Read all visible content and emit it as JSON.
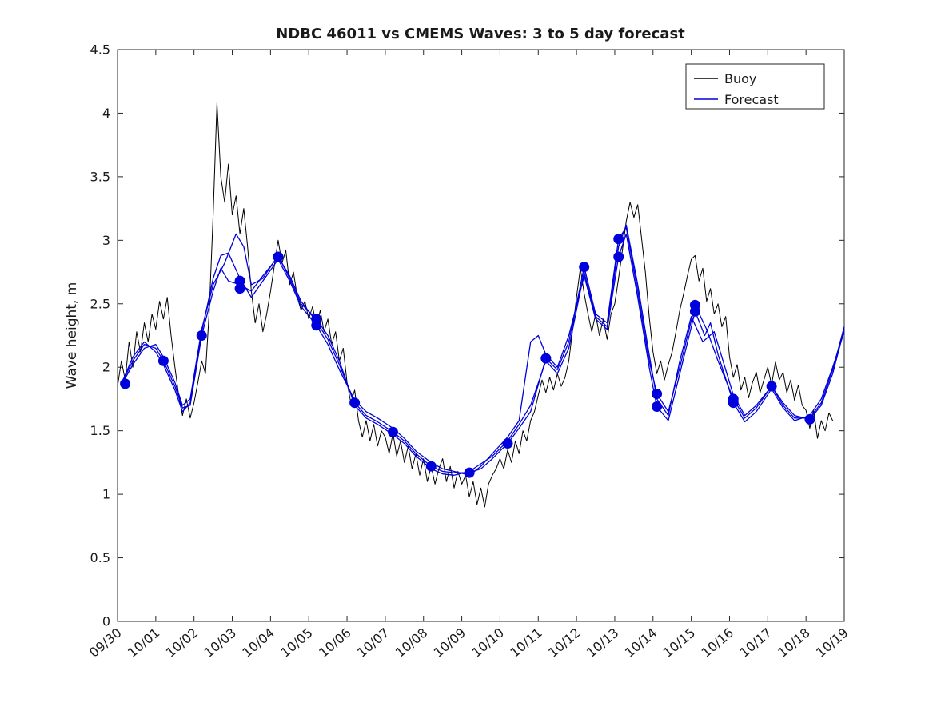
{
  "title": "NDBC 46011 vs CMEMS Waves: 3 to 5 day forecast",
  "style": {
    "axis_color": "#262626",
    "buoy_color": "#000000",
    "forecast_color": "#0000dd",
    "background": "#ffffff"
  },
  "chart_data": {
    "type": "line",
    "title": "NDBC 46011 vs CMEMS Waves: 3 to 5 day forecast",
    "xlabel": "",
    "ylabel": "Wave height, m",
    "grid": false,
    "legend_position": "northeast",
    "legend": [
      "Buoy",
      "Forecast"
    ],
    "xlim_days": [
      0,
      19
    ],
    "ylim": [
      0,
      4.5
    ],
    "x_tick_labels": [
      "09/30",
      "10/01",
      "10/02",
      "10/03",
      "10/04",
      "10/05",
      "10/06",
      "10/07",
      "10/08",
      "10/09",
      "10/10",
      "10/11",
      "10/12",
      "10/13",
      "10/14",
      "10/15",
      "10/16",
      "10/17",
      "10/18",
      "10/19"
    ],
    "y_ticks": [
      0,
      0.5,
      1,
      1.5,
      2,
      2.5,
      3,
      3.5,
      4,
      4.5
    ],
    "y_tick_labels": [
      "0",
      "0.5",
      "1",
      "1.5",
      "2",
      "2.5",
      "3",
      "3.5",
      "4",
      "4.5"
    ],
    "series": [
      {
        "name": "Buoy",
        "type": "line",
        "color": "#000000",
        "width": 1,
        "x0": 0,
        "dt": 0.1,
        "y": [
          1.85,
          2.05,
          1.9,
          2.2,
          2.0,
          2.28,
          2.12,
          2.35,
          2.2,
          2.42,
          2.3,
          2.52,
          2.38,
          2.55,
          2.25,
          2.0,
          1.78,
          1.62,
          1.75,
          1.6,
          1.72,
          1.88,
          2.05,
          1.95,
          2.45,
          3.2,
          4.08,
          3.5,
          3.3,
          3.6,
          3.2,
          3.35,
          3.05,
          3.25,
          2.95,
          2.6,
          2.35,
          2.5,
          2.28,
          2.42,
          2.6,
          2.8,
          3.0,
          2.82,
          2.92,
          2.65,
          2.75,
          2.55,
          2.45,
          2.52,
          2.38,
          2.48,
          2.32,
          2.45,
          2.28,
          2.38,
          2.18,
          2.28,
          2.05,
          2.15,
          1.88,
          1.72,
          1.82,
          1.58,
          1.45,
          1.58,
          1.42,
          1.55,
          1.38,
          1.5,
          1.45,
          1.32,
          1.48,
          1.3,
          1.42,
          1.25,
          1.38,
          1.2,
          1.32,
          1.15,
          1.28,
          1.1,
          1.22,
          1.08,
          1.2,
          1.28,
          1.1,
          1.22,
          1.05,
          1.18,
          1.08,
          1.15,
          0.98,
          1.1,
          0.92,
          1.05,
          0.9,
          1.08,
          1.15,
          1.2,
          1.28,
          1.2,
          1.35,
          1.25,
          1.42,
          1.32,
          1.5,
          1.42,
          1.58,
          1.65,
          1.78,
          1.9,
          1.8,
          1.92,
          1.82,
          1.95,
          1.85,
          1.92,
          2.05,
          2.3,
          2.55,
          2.78,
          2.58,
          2.42,
          2.28,
          2.42,
          2.25,
          2.38,
          2.22,
          2.42,
          2.5,
          2.7,
          2.92,
          3.15,
          3.3,
          3.18,
          3.28,
          3.02,
          2.75,
          2.4,
          2.12,
          1.95,
          2.05,
          1.9,
          2.02,
          2.12,
          2.28,
          2.45,
          2.58,
          2.72,
          2.85,
          2.88,
          2.68,
          2.78,
          2.52,
          2.62,
          2.42,
          2.5,
          2.32,
          2.4,
          2.08,
          1.92,
          2.02,
          1.82,
          1.92,
          1.76,
          1.88,
          1.96,
          1.8,
          1.9,
          2.0,
          1.86,
          2.04,
          1.9,
          1.96,
          1.8,
          1.9,
          1.74,
          1.86,
          1.7,
          1.66,
          1.52,
          1.66,
          1.44,
          1.58,
          1.5,
          1.64,
          1.58
        ]
      },
      {
        "name": "Forecast",
        "type": "line",
        "color": "#0000dd",
        "width": 1.3,
        "points": [
          [
            0.1,
            1.87
          ],
          [
            0.4,
            2.05
          ],
          [
            0.7,
            2.18
          ],
          [
            1.0,
            2.15
          ],
          [
            1.2,
            2.05
          ],
          [
            1.5,
            1.85
          ],
          [
            1.7,
            1.68
          ],
          [
            1.9,
            1.7
          ],
          [
            2.2,
            2.25
          ],
          [
            2.5,
            2.6
          ],
          [
            2.7,
            2.78
          ],
          [
            2.9,
            2.68
          ],
          [
            3.2,
            2.65
          ],
          [
            3.5,
            2.6
          ],
          [
            3.8,
            2.72
          ],
          [
            4.2,
            2.87
          ],
          [
            4.5,
            2.72
          ],
          [
            4.8,
            2.52
          ],
          [
            5.2,
            2.36
          ],
          [
            5.5,
            2.22
          ],
          [
            5.8,
            2.02
          ],
          [
            6.2,
            1.72
          ],
          [
            6.5,
            1.62
          ],
          [
            6.8,
            1.57
          ],
          [
            7.2,
            1.49
          ],
          [
            7.5,
            1.42
          ],
          [
            7.8,
            1.32
          ],
          [
            8.2,
            1.22
          ],
          [
            8.5,
            1.18
          ],
          [
            8.8,
            1.17
          ],
          [
            9.2,
            1.17
          ],
          [
            9.5,
            1.2
          ],
          [
            9.8,
            1.28
          ],
          [
            10.2,
            1.4
          ],
          [
            10.5,
            1.52
          ],
          [
            10.8,
            1.65
          ],
          [
            11.2,
            2.07
          ],
          [
            11.5,
            1.98
          ],
          [
            11.8,
            2.2
          ],
          [
            12.2,
            2.79
          ],
          [
            12.5,
            2.42
          ],
          [
            12.8,
            2.35
          ],
          [
            13.1,
            3.01
          ],
          [
            13.3,
            3.1
          ],
          [
            13.6,
            2.6
          ],
          [
            13.9,
            2.05
          ],
          [
            14.1,
            1.79
          ],
          [
            14.4,
            1.65
          ],
          [
            14.7,
            2.0
          ],
          [
            15.1,
            2.49
          ],
          [
            15.4,
            2.3
          ],
          [
            15.7,
            2.05
          ],
          [
            16.1,
            1.75
          ],
          [
            16.4,
            1.6
          ],
          [
            16.7,
            1.68
          ],
          [
            17.1,
            1.85
          ],
          [
            17.4,
            1.72
          ],
          [
            17.7,
            1.62
          ],
          [
            18.1,
            1.59
          ],
          [
            18.4,
            1.7
          ],
          [
            18.7,
            1.95
          ],
          [
            19.0,
            2.3
          ]
        ]
      },
      {
        "name": "Forecast",
        "type": "line",
        "color": "#0000dd",
        "width": 1.3,
        "points": [
          [
            0.1,
            1.87
          ],
          [
            0.4,
            2.08
          ],
          [
            0.7,
            2.2
          ],
          [
            1.0,
            2.12
          ],
          [
            1.2,
            2.02
          ],
          [
            1.5,
            1.82
          ],
          [
            1.7,
            1.65
          ],
          [
            1.9,
            1.72
          ],
          [
            2.2,
            2.28
          ],
          [
            2.5,
            2.7
          ],
          [
            2.7,
            2.88
          ],
          [
            2.9,
            2.9
          ],
          [
            3.2,
            2.7
          ],
          [
            3.5,
            2.55
          ],
          [
            3.8,
            2.68
          ],
          [
            4.2,
            2.85
          ],
          [
            4.5,
            2.68
          ],
          [
            4.8,
            2.48
          ],
          [
            5.2,
            2.33
          ],
          [
            5.5,
            2.18
          ],
          [
            5.8,
            1.98
          ],
          [
            6.2,
            1.74
          ],
          [
            6.5,
            1.65
          ],
          [
            6.8,
            1.6
          ],
          [
            7.2,
            1.52
          ],
          [
            7.5,
            1.44
          ],
          [
            7.8,
            1.34
          ],
          [
            8.2,
            1.25
          ],
          [
            8.5,
            1.2
          ],
          [
            8.8,
            1.18
          ],
          [
            9.2,
            1.15
          ],
          [
            9.5,
            1.22
          ],
          [
            9.8,
            1.32
          ],
          [
            10.2,
            1.45
          ],
          [
            10.5,
            1.58
          ],
          [
            10.8,
            2.2
          ],
          [
            11.0,
            2.25
          ],
          [
            11.2,
            2.1
          ],
          [
            11.5,
            2.0
          ],
          [
            11.8,
            2.25
          ],
          [
            12.2,
            2.72
          ],
          [
            12.5,
            2.38
          ],
          [
            12.8,
            2.3
          ],
          [
            13.1,
            2.87
          ],
          [
            13.3,
            3.05
          ],
          [
            13.6,
            2.55
          ],
          [
            13.9,
            2.0
          ],
          [
            14.1,
            1.69
          ],
          [
            14.4,
            1.58
          ],
          [
            14.7,
            1.95
          ],
          [
            15.1,
            2.44
          ],
          [
            15.35,
            2.25
          ],
          [
            15.5,
            2.35
          ],
          [
            15.7,
            2.1
          ],
          [
            16.1,
            1.72
          ],
          [
            16.4,
            1.57
          ],
          [
            16.7,
            1.65
          ],
          [
            17.1,
            1.83
          ],
          [
            17.4,
            1.68
          ],
          [
            17.7,
            1.58
          ],
          [
            18.1,
            1.62
          ],
          [
            18.4,
            1.75
          ],
          [
            18.7,
            2.0
          ],
          [
            19.0,
            2.28
          ]
        ]
      },
      {
        "name": "Forecast",
        "type": "line",
        "color": "#0000dd",
        "width": 1.3,
        "points": [
          [
            0.1,
            1.86
          ],
          [
            0.4,
            2.02
          ],
          [
            0.7,
            2.15
          ],
          [
            1.0,
            2.18
          ],
          [
            1.2,
            2.08
          ],
          [
            1.5,
            1.88
          ],
          [
            1.7,
            1.7
          ],
          [
            1.9,
            1.75
          ],
          [
            2.2,
            2.3
          ],
          [
            2.5,
            2.65
          ],
          [
            2.8,
            2.82
          ],
          [
            3.1,
            3.05
          ],
          [
            3.3,
            2.95
          ],
          [
            3.5,
            2.65
          ],
          [
            3.8,
            2.7
          ],
          [
            4.2,
            2.88
          ],
          [
            4.5,
            2.7
          ],
          [
            4.8,
            2.5
          ],
          [
            5.2,
            2.38
          ],
          [
            5.5,
            2.25
          ],
          [
            5.8,
            2.05
          ],
          [
            6.2,
            1.7
          ],
          [
            6.5,
            1.6
          ],
          [
            6.8,
            1.55
          ],
          [
            7.2,
            1.47
          ],
          [
            7.5,
            1.4
          ],
          [
            7.8,
            1.3
          ],
          [
            8.2,
            1.2
          ],
          [
            8.5,
            1.16
          ],
          [
            8.8,
            1.15
          ],
          [
            9.2,
            1.18
          ],
          [
            9.5,
            1.24
          ],
          [
            9.8,
            1.3
          ],
          [
            10.2,
            1.42
          ],
          [
            10.5,
            1.55
          ],
          [
            10.8,
            1.7
          ],
          [
            11.2,
            2.05
          ],
          [
            11.5,
            1.95
          ],
          [
            11.8,
            2.15
          ],
          [
            12.2,
            2.75
          ],
          [
            12.5,
            2.4
          ],
          [
            12.8,
            2.32
          ],
          [
            13.1,
            2.95
          ],
          [
            13.3,
            3.12
          ],
          [
            13.6,
            2.65
          ],
          [
            13.9,
            2.1
          ],
          [
            14.1,
            1.75
          ],
          [
            14.4,
            1.62
          ],
          [
            14.7,
            2.05
          ],
          [
            15.0,
            2.4
          ],
          [
            15.3,
            2.2
          ],
          [
            15.6,
            2.28
          ],
          [
            16.1,
            1.78
          ],
          [
            16.4,
            1.62
          ],
          [
            16.7,
            1.7
          ],
          [
            17.1,
            1.85
          ],
          [
            17.4,
            1.7
          ],
          [
            17.7,
            1.6
          ],
          [
            18.1,
            1.6
          ],
          [
            18.4,
            1.72
          ],
          [
            18.7,
            1.98
          ],
          [
            19.0,
            2.32
          ]
        ]
      },
      {
        "name": "Forecast verification markers",
        "type": "scatter",
        "color": "#0000dd",
        "radius": 6.5,
        "points": [
          [
            0.2,
            1.87
          ],
          [
            1.2,
            2.05
          ],
          [
            2.2,
            2.25
          ],
          [
            3.2,
            2.68
          ],
          [
            3.2,
            2.62
          ],
          [
            4.2,
            2.87
          ],
          [
            5.2,
            2.38
          ],
          [
            5.2,
            2.33
          ],
          [
            6.2,
            1.72
          ],
          [
            7.2,
            1.49
          ],
          [
            8.2,
            1.22
          ],
          [
            9.2,
            1.17
          ],
          [
            10.2,
            1.4
          ],
          [
            11.2,
            2.07
          ],
          [
            12.2,
            2.79
          ],
          [
            13.1,
            3.01
          ],
          [
            13.1,
            2.87
          ],
          [
            14.1,
            1.79
          ],
          [
            14.1,
            1.69
          ],
          [
            15.1,
            2.49
          ],
          [
            15.1,
            2.44
          ],
          [
            16.1,
            1.75
          ],
          [
            16.1,
            1.72
          ],
          [
            17.1,
            1.85
          ],
          [
            18.1,
            1.59
          ]
        ]
      }
    ]
  }
}
